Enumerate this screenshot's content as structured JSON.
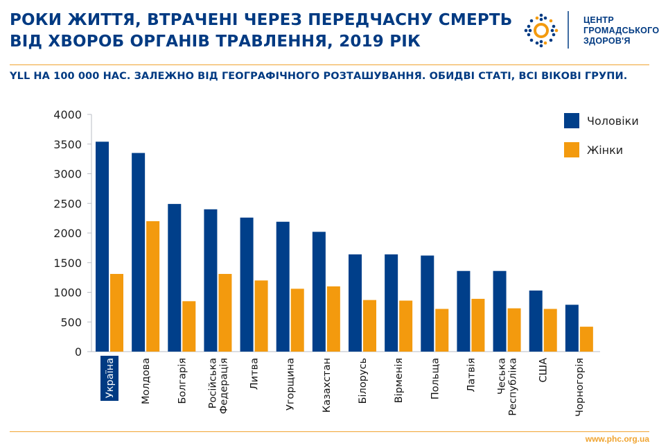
{
  "header": {
    "title_line1": "РОКИ ЖИТТЯ, ВТРАЧЕНІ ЧЕРЕЗ ПЕРЕДЧАСНУ СМЕРТЬ",
    "title_line2": "ВІД ХВОРОБ ОРГАНІВ ТРАВЛЕННЯ, 2019 РІК",
    "subtitle": "YLL НА 100 000 НАС. ЗАЛЕЖНО ВІД ГЕОГРАФІЧНОГО РОЗТАШУВАННЯ. ОБИДВІ СТАТІ, ВСІ ВІКОВІ ГРУПИ."
  },
  "logo": {
    "line1": "ЦЕНТР",
    "line2": "ГРОМАДСЬКОГО",
    "line3": "ЗДОРОВ'Я",
    "icon": "phc-logo-icon"
  },
  "footer": {
    "site": "www.phc.org.ua"
  },
  "colors": {
    "men": "#003f8a",
    "women": "#f39a0e",
    "accent": "#f0a430",
    "text": "#003a82"
  },
  "chart_data": {
    "type": "bar",
    "categories": [
      "Україна",
      "Молдова",
      "Болгарія",
      "Російська Федерація",
      "Литва",
      "Угорщина",
      "Казахстан",
      "Білорусь",
      "Вірменія",
      "Польща",
      "Латвія",
      "Чеська Республіка",
      "США",
      "Чорногорія"
    ],
    "highlight_category": "Україна",
    "series": [
      {
        "name": "Чоловіки",
        "color": "#003f8a",
        "values": [
          3540,
          3350,
          2490,
          2400,
          2260,
          2190,
          2020,
          1640,
          1640,
          1620,
          1360,
          1360,
          1030,
          790
        ]
      },
      {
        "name": "Жінки",
        "color": "#f39a0e",
        "values": [
          1310,
          2200,
          850,
          1310,
          1200,
          1060,
          1100,
          870,
          860,
          720,
          890,
          730,
          720,
          420
        ]
      }
    ],
    "yticks": [
      0,
      500,
      1000,
      1500,
      2000,
      2500,
      3000,
      3500,
      4000
    ],
    "ylim": [
      0,
      4000
    ],
    "legend_position": "top-right"
  }
}
